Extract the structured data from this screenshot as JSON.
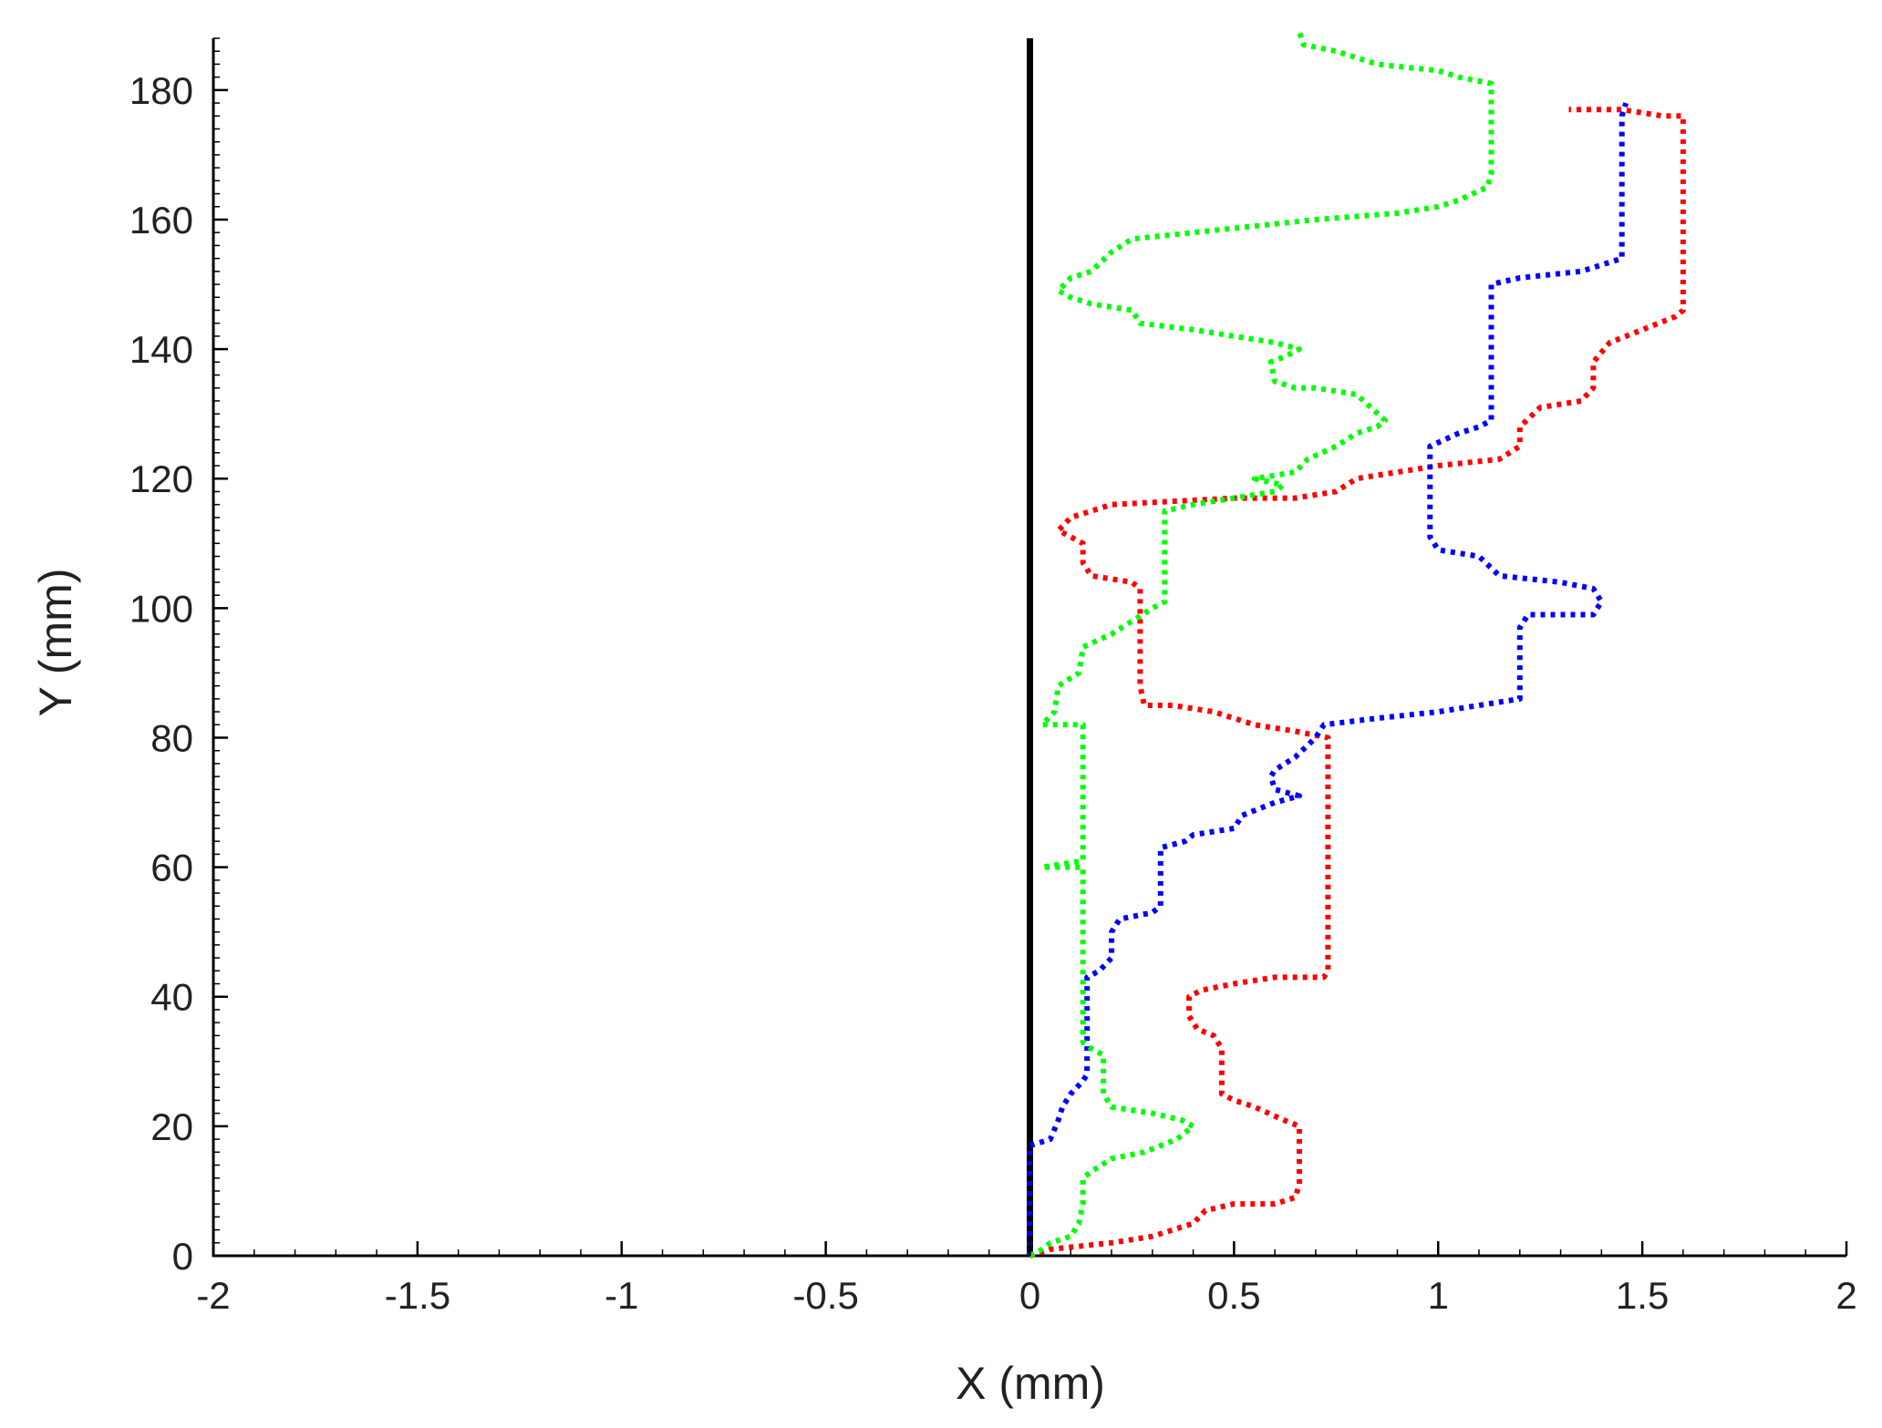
{
  "chart_data": {
    "type": "line",
    "title": "",
    "xlabel": "X (mm)",
    "ylabel": "Y (mm)",
    "xlim": [
      -2,
      2
    ],
    "ylim": [
      0,
      188
    ],
    "xticks": [
      "-2",
      "-1.5",
      "-1",
      "-0.5",
      "0",
      "0.5",
      "1",
      "1.5",
      "2"
    ],
    "yticks": [
      "0",
      "20",
      "40",
      "60",
      "80",
      "100",
      "120",
      "140",
      "160",
      "180"
    ],
    "grid": false,
    "reference_line": {
      "x": 0,
      "color": "#000000"
    },
    "series": [
      {
        "color": "#ff0000",
        "style": "dotted",
        "points": [
          [
            0,
            0
          ],
          [
            0.05,
            1
          ],
          [
            0.2,
            2
          ],
          [
            0.3,
            3
          ],
          [
            0.4,
            5
          ],
          [
            0.43,
            7
          ],
          [
            0.5,
            8
          ],
          [
            0.6,
            8
          ],
          [
            0.65,
            9
          ],
          [
            0.66,
            11
          ],
          [
            0.66,
            20
          ],
          [
            0.62,
            21
          ],
          [
            0.55,
            23
          ],
          [
            0.5,
            24
          ],
          [
            0.47,
            25
          ],
          [
            0.47,
            32
          ],
          [
            0.45,
            34
          ],
          [
            0.41,
            35
          ],
          [
            0.39,
            37
          ],
          [
            0.39,
            40
          ],
          [
            0.42,
            41
          ],
          [
            0.5,
            42
          ],
          [
            0.6,
            43
          ],
          [
            0.72,
            43
          ],
          [
            0.73,
            44
          ],
          [
            0.73,
            80
          ],
          [
            0.65,
            81
          ],
          [
            0.55,
            82
          ],
          [
            0.5,
            83
          ],
          [
            0.45,
            84
          ],
          [
            0.35,
            85
          ],
          [
            0.28,
            85
          ],
          [
            0.27,
            88
          ],
          [
            0.27,
            103
          ],
          [
            0.25,
            104
          ],
          [
            0.15,
            105
          ],
          [
            0.13,
            107
          ],
          [
            0.13,
            110
          ],
          [
            0.1,
            111
          ],
          [
            0.07,
            112
          ],
          [
            0.1,
            114
          ],
          [
            0.15,
            115
          ],
          [
            0.2,
            116
          ],
          [
            0.5,
            117
          ],
          [
            0.65,
            117
          ],
          [
            0.75,
            118
          ],
          [
            0.8,
            120
          ],
          [
            0.9,
            121
          ],
          [
            1.0,
            122
          ],
          [
            1.15,
            123
          ],
          [
            1.2,
            125
          ],
          [
            1.2,
            128
          ],
          [
            1.25,
            131
          ],
          [
            1.35,
            132
          ],
          [
            1.38,
            134
          ],
          [
            1.38,
            138
          ],
          [
            1.42,
            141
          ],
          [
            1.5,
            143
          ],
          [
            1.58,
            145
          ],
          [
            1.6,
            146
          ],
          [
            1.6,
            176
          ],
          [
            1.55,
            176
          ],
          [
            1.45,
            177
          ],
          [
            1.32,
            177
          ]
        ]
      },
      {
        "color": "#0000ff",
        "style": "dotted",
        "points": [
          [
            0,
            0
          ],
          [
            0,
            17
          ],
          [
            0.05,
            18
          ],
          [
            0.07,
            21
          ],
          [
            0.08,
            23
          ],
          [
            0.1,
            25
          ],
          [
            0.13,
            27
          ],
          [
            0.14,
            28
          ],
          [
            0.14,
            43
          ],
          [
            0.17,
            44
          ],
          [
            0.2,
            46
          ],
          [
            0.2,
            50
          ],
          [
            0.22,
            52
          ],
          [
            0.3,
            53
          ],
          [
            0.32,
            54
          ],
          [
            0.32,
            63
          ],
          [
            0.38,
            64
          ],
          [
            0.4,
            65
          ],
          [
            0.5,
            66
          ],
          [
            0.52,
            68
          ],
          [
            0.6,
            70
          ],
          [
            0.66,
            71
          ],
          [
            0.6,
            72
          ],
          [
            0.59,
            74
          ],
          [
            0.6,
            75
          ],
          [
            0.65,
            77
          ],
          [
            0.7,
            80
          ],
          [
            0.72,
            82
          ],
          [
            0.85,
            83
          ],
          [
            1.0,
            84
          ],
          [
            1.1,
            85
          ],
          [
            1.2,
            86
          ],
          [
            1.2,
            97
          ],
          [
            1.22,
            99
          ],
          [
            1.38,
            99
          ],
          [
            1.4,
            101
          ],
          [
            1.38,
            103
          ],
          [
            1.3,
            104
          ],
          [
            1.15,
            105
          ],
          [
            1.1,
            108
          ],
          [
            1.0,
            109
          ],
          [
            0.98,
            111
          ],
          [
            0.98,
            125
          ],
          [
            1.05,
            127
          ],
          [
            1.1,
            128
          ],
          [
            1.13,
            129
          ],
          [
            1.13,
            150
          ],
          [
            1.2,
            151
          ],
          [
            1.35,
            152
          ],
          [
            1.45,
            154
          ],
          [
            1.45,
            176
          ],
          [
            1.46,
            178
          ]
        ]
      },
      {
        "color": "#00ff00",
        "style": "dotted",
        "points": [
          [
            0,
            0
          ],
          [
            0.03,
            1
          ],
          [
            0.05,
            2
          ],
          [
            0.1,
            3
          ],
          [
            0.12,
            5
          ],
          [
            0.13,
            8
          ],
          [
            0.13,
            12
          ],
          [
            0.15,
            13
          ],
          [
            0.2,
            15
          ],
          [
            0.28,
            16
          ],
          [
            0.32,
            17
          ],
          [
            0.36,
            18
          ],
          [
            0.4,
            20
          ],
          [
            0.37,
            21
          ],
          [
            0.3,
            22
          ],
          [
            0.2,
            23
          ],
          [
            0.18,
            25
          ],
          [
            0.18,
            31
          ],
          [
            0.15,
            32
          ],
          [
            0.13,
            33
          ],
          [
            0.13,
            60
          ],
          [
            0.03,
            60
          ],
          [
            0.13,
            61
          ],
          [
            0.13,
            82
          ],
          [
            0.03,
            82
          ],
          [
            0.06,
            84
          ],
          [
            0.07,
            88
          ],
          [
            0.12,
            90
          ],
          [
            0.13,
            94
          ],
          [
            0.2,
            96
          ],
          [
            0.25,
            98
          ],
          [
            0.3,
            100
          ],
          [
            0.33,
            101
          ],
          [
            0.33,
            115
          ],
          [
            0.4,
            116
          ],
          [
            0.5,
            117
          ],
          [
            0.6,
            118
          ],
          [
            0.62,
            119
          ],
          [
            0.55,
            120
          ],
          [
            0.65,
            121
          ],
          [
            0.68,
            123
          ],
          [
            0.75,
            125
          ],
          [
            0.8,
            127
          ],
          [
            0.85,
            128
          ],
          [
            0.87,
            129
          ],
          [
            0.8,
            133
          ],
          [
            0.7,
            134
          ],
          [
            0.65,
            134
          ],
          [
            0.6,
            135
          ],
          [
            0.59,
            138
          ],
          [
            0.63,
            139
          ],
          [
            0.66,
            140
          ],
          [
            0.6,
            141
          ],
          [
            0.5,
            142
          ],
          [
            0.4,
            143
          ],
          [
            0.27,
            144
          ],
          [
            0.25,
            146
          ],
          [
            0.15,
            147
          ],
          [
            0.1,
            148
          ],
          [
            0.07,
            149
          ],
          [
            0.1,
            151
          ],
          [
            0.15,
            152
          ],
          [
            0.2,
            155
          ],
          [
            0.25,
            157
          ],
          [
            0.4,
            158
          ],
          [
            0.55,
            159
          ],
          [
            0.7,
            160
          ],
          [
            0.9,
            161
          ],
          [
            1.0,
            162
          ],
          [
            1.05,
            163
          ],
          [
            1.12,
            165
          ],
          [
            1.13,
            167
          ],
          [
            1.13,
            181
          ],
          [
            1.05,
            182
          ],
          [
            1.0,
            183
          ],
          [
            0.85,
            184
          ],
          [
            0.75,
            186
          ],
          [
            0.67,
            187
          ],
          [
            0.66,
            189
          ]
        ]
      }
    ]
  }
}
